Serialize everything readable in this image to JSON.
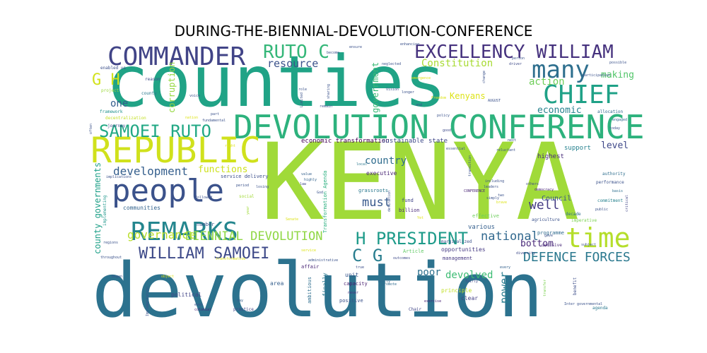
{
  "chart_data": {
    "type": "wordcloud",
    "title": "DURING-THE-BIENNIAL-DEVOLUTION-CONFERENCE",
    "colormap": "viridis",
    "background": "#ffffff",
    "words": [
      {
        "text": "KENYA",
        "weight": 100,
        "color": "#a0da39"
      },
      {
        "text": "counties",
        "weight": 80,
        "color": "#20a386"
      },
      {
        "text": "devolution",
        "weight": 76,
        "color": "#2c728e"
      },
      {
        "text": "DEVOLUTION CONFERENCE",
        "weight": 38,
        "color": "#2db27d"
      },
      {
        "text": "REPUBLIC",
        "weight": 40,
        "color": "#d0e11c"
      },
      {
        "text": "people",
        "weight": 36,
        "color": "#3b528b"
      },
      {
        "text": "COMMANDER",
        "weight": 32,
        "color": "#414487"
      },
      {
        "text": "REMARKS",
        "weight": 30,
        "color": "#24868e"
      },
      {
        "text": "CHIEF",
        "weight": 30,
        "color": "#1fa187"
      },
      {
        "text": "many",
        "weight": 28,
        "color": "#2e6f8e"
      },
      {
        "text": "time",
        "weight": 28,
        "color": "#b5de2b"
      },
      {
        "text": "EXCELLENCY WILLIAM",
        "weight": 24,
        "color": "#46327e"
      },
      {
        "text": "RUTO C",
        "weight": 24,
        "color": "#35b779"
      },
      {
        "text": "SAMOEI RUTO",
        "weight": 24,
        "color": "#22a884"
      },
      {
        "text": "WILLIAM SAMOEI",
        "weight": 22,
        "color": "#3e4a89"
      },
      {
        "text": "H PRESIDENT",
        "weight": 22,
        "color": "#1e9b8a"
      },
      {
        "text": "C G",
        "weight": 22,
        "color": "#287d8e"
      },
      {
        "text": "BIENNIAL DEVOLUTION",
        "weight": 18,
        "color": "#8fd744"
      },
      {
        "text": "DEFENCE FORCES",
        "weight": 18,
        "color": "#2a788e"
      },
      {
        "text": "G H",
        "weight": 20,
        "color": "#d2e21b"
      },
      {
        "text": "development",
        "weight": 15,
        "color": "#355f8d"
      },
      {
        "text": "governance",
        "weight": 16,
        "color": "#b8de29"
      },
      {
        "text": "national",
        "weight": 16,
        "color": "#31688e"
      },
      {
        "text": "well",
        "weight": 16,
        "color": "#443a83"
      },
      {
        "text": "must",
        "weight": 15,
        "color": "#38598c"
      },
      {
        "text": "country",
        "weight": 13,
        "color": "#2f6c8e"
      },
      {
        "text": "resource",
        "weight": 14,
        "color": "#3b528b"
      },
      {
        "text": "Constitution",
        "weight": 14,
        "color": "#a8db34"
      },
      {
        "text": "economic",
        "weight": 13,
        "color": "#26828e"
      },
      {
        "text": "action",
        "weight": 13,
        "color": "#6ece58"
      },
      {
        "text": "making",
        "weight": 12,
        "color": "#52c569"
      },
      {
        "text": "level",
        "weight": 12,
        "color": "#3f4889"
      },
      {
        "text": "functions",
        "weight": 13,
        "color": "#cde11d"
      },
      {
        "text": "one",
        "weight": 14,
        "color": "#355e8d"
      },
      {
        "text": "poor",
        "weight": 13,
        "color": "#2d708e"
      },
      {
        "text": "bottom",
        "weight": 13,
        "color": "#482878"
      },
      {
        "text": "devolved",
        "weight": 13,
        "color": "#3dbc74"
      },
      {
        "text": "power",
        "weight": 14,
        "color": "#287c8e"
      },
      {
        "text": "corruption",
        "weight": 12,
        "color": "#95d840"
      },
      {
        "text": "county governments",
        "weight": 12,
        "color": "#1fa088"
      },
      {
        "text": "government",
        "weight": 12,
        "color": "#3aba76"
      },
      {
        "text": "Kenyans",
        "weight": 12,
        "color": "#dde318"
      },
      {
        "text": "Council",
        "weight": 10,
        "color": "#3b528b"
      },
      {
        "text": "support",
        "weight": 9,
        "color": "#26818e"
      },
      {
        "text": "highest",
        "weight": 9,
        "color": "#472c7a"
      },
      {
        "text": "economic transformation",
        "weight": 9,
        "color": "#440154"
      },
      {
        "text": "sustainable",
        "weight": 9,
        "color": "#3e4989"
      },
      {
        "text": "state",
        "weight": 9,
        "color": "#3f4788"
      },
      {
        "text": "various",
        "weight": 9,
        "color": "#355f8d"
      },
      {
        "text": "executive",
        "weight": 8,
        "color": "#482475"
      },
      {
        "text": "communities",
        "weight": 8,
        "color": "#33638d"
      },
      {
        "text": "political",
        "weight": 8,
        "color": "#414487"
      },
      {
        "text": "area",
        "weight": 8,
        "color": "#355f8d"
      },
      {
        "text": "unit",
        "weight": 8,
        "color": "#39558c"
      },
      {
        "text": "capacity",
        "weight": 7,
        "color": "#481f70"
      },
      {
        "text": "opportunities",
        "weight": 8,
        "color": "#443983"
      },
      {
        "text": "management",
        "weight": 7,
        "color": "#453781"
      },
      {
        "text": "affair",
        "weight": 7,
        "color": "#482475"
      },
      {
        "text": "principle",
        "weight": 8,
        "color": "#c0df25"
      },
      {
        "text": "clear",
        "weight": 8,
        "color": "#423f85"
      },
      {
        "text": "positive",
        "weight": 7,
        "color": "#3b528b"
      },
      {
        "text": "finally",
        "weight": 8,
        "color": "#2a788e"
      },
      {
        "text": "ambitious",
        "weight": 7,
        "color": "#2e6e8e"
      },
      {
        "text": "effective",
        "weight": 7,
        "color": "#6ccd5a"
      },
      {
        "text": "fund",
        "weight": 7,
        "color": "#404588"
      },
      {
        "text": "programme",
        "weight": 7,
        "color": "#2f6b8e"
      },
      {
        "text": "billion",
        "weight": 7,
        "color": "#482878"
      },
      {
        "text": "Article",
        "weight": 7,
        "color": "#5ec962"
      },
      {
        "text": "Transformation Agenda",
        "weight": 7,
        "color": "#29af7f"
      },
      {
        "text": "grassroots",
        "weight": 7,
        "color": "#2a788e"
      },
      {
        "text": "number",
        "weight": 7,
        "color": "#39568c"
      },
      {
        "text": "service delivery",
        "weight": 7,
        "color": "#3c4f8a"
      },
      {
        "text": "implementing",
        "weight": 6,
        "color": "#1f968b"
      },
      {
        "text": "framework",
        "weight": 6,
        "color": "#20928c"
      },
      {
        "text": "decentralization",
        "weight": 6,
        "color": "#c2df23"
      },
      {
        "text": "reason",
        "weight": 6,
        "color": "#3e4c8a"
      },
      {
        "text": "enabled us",
        "weight": 6,
        "color": "#3c508b"
      },
      {
        "text": "project",
        "weight": 6,
        "color": "#9bd93c"
      },
      {
        "text": "journey",
        "weight": 6,
        "color": "#3e4a89"
      },
      {
        "text": "decade",
        "weight": 6,
        "color": "#2e6e8e"
      },
      {
        "text": "decisive",
        "weight": 6,
        "color": "#482878"
      },
      {
        "text": "agriculture",
        "weight": 6,
        "color": "#3b528b"
      },
      {
        "text": "imperative",
        "weight": 6,
        "color": "#7ad151"
      },
      {
        "text": "commitment",
        "weight": 6,
        "color": "#26828e"
      },
      {
        "text": "performance",
        "weight": 6,
        "color": "#3b528b"
      },
      {
        "text": "authority",
        "weight": 6,
        "color": "#2e6e8e"
      },
      {
        "text": "allocation",
        "weight": 6,
        "color": "#31678e"
      },
      {
        "text": "agenda",
        "weight": 6,
        "color": "#2a788e"
      },
      {
        "text": "benefit",
        "weight": 6,
        "color": "#3d4e8a"
      },
      {
        "text": "transfer",
        "weight": 5,
        "color": "#7ad151"
      },
      {
        "text": "diversity",
        "weight": 5,
        "color": "#3e4989"
      },
      {
        "text": "marginalized",
        "weight": 6,
        "color": "#3b528b"
      },
      {
        "text": "every",
        "weight": 5,
        "color": "#34618d"
      },
      {
        "text": "Inter governmental",
        "weight": 5,
        "color": "#3b528b"
      },
      {
        "text": "outcomes",
        "weight": 5,
        "color": "#3e4a89"
      },
      {
        "text": "really",
        "weight": 5,
        "color": "#30698e"
      },
      {
        "text": "exercise",
        "weight": 5,
        "color": "#482475"
      },
      {
        "text": "Chair",
        "weight": 6,
        "color": "#404688"
      },
      {
        "text": "practice",
        "weight": 6,
        "color": "#414487"
      },
      {
        "text": "never",
        "weight": 5,
        "color": "#46337f"
      },
      {
        "text": "colonial",
        "weight": 5,
        "color": "#482677"
      },
      {
        "text": "even",
        "weight": 5,
        "color": "#3b528b"
      },
      {
        "text": "may",
        "weight": 5,
        "color": "#35608d"
      },
      {
        "text": "true",
        "weight": 5,
        "color": "#3d4e8a"
      },
      {
        "text": "fairly",
        "weight": 5,
        "color": "#3f4889"
      },
      {
        "text": "promote",
        "weight": 5,
        "color": "#2f6b8e"
      },
      {
        "text": "Senate",
        "weight": 5,
        "color": "#dde318"
      },
      {
        "text": "law",
        "weight": 5,
        "color": "#3e4a89"
      },
      {
        "text": "social",
        "weight": 6,
        "color": "#a2da37"
      },
      {
        "text": "period",
        "weight": 5,
        "color": "#3b528b"
      },
      {
        "text": "highly",
        "weight": 5,
        "color": "#33628d"
      },
      {
        "text": "value",
        "weight": 5,
        "color": "#34608d"
      },
      {
        "text": "local",
        "weight": 5,
        "color": "#2a788e"
      },
      {
        "text": "public",
        "weight": 5,
        "color": "#3b528b"
      },
      {
        "text": "basis",
        "weight": 5,
        "color": "#2e6e8e"
      },
      {
        "text": "critical",
        "weight": 5,
        "color": "#404688"
      },
      {
        "text": "today",
        "weight": 5,
        "color": "#3b528b"
      },
      {
        "text": "engaged",
        "weight": 5,
        "color": "#31688e"
      },
      {
        "text": "possible",
        "weight": 5,
        "color": "#3b528b"
      },
      {
        "text": "participation",
        "weight": 5,
        "color": "#3b528b"
      },
      {
        "text": "driver",
        "weight": 5,
        "color": "#3e4a89"
      },
      {
        "text": "AUGUST",
        "weight": 5,
        "color": "#3b528b"
      },
      {
        "text": "Freedom",
        "weight": 5,
        "color": "#dde318"
      },
      {
        "text": "policy",
        "weight": 5,
        "color": "#3b528b"
      },
      {
        "text": "good",
        "weight": 5,
        "color": "#3e4a89"
      },
      {
        "text": "next",
        "weight": 5,
        "color": "#3b528b"
      },
      {
        "text": "reluctant",
        "weight": 5,
        "color": "#3b528b"
      },
      {
        "text": "others",
        "weight": 5,
        "color": "#3e4a89"
      },
      {
        "text": "including",
        "weight": 5,
        "color": "#3b528b"
      },
      {
        "text": "CONFERENCE",
        "weight": 5,
        "color": "#482475"
      },
      {
        "text": "leaders",
        "weight": 5,
        "color": "#3b528b"
      },
      {
        "text": "simply",
        "weight": 5,
        "color": "#3b528b"
      },
      {
        "text": "two",
        "weight": 5,
        "color": "#3b528b"
      },
      {
        "text": "brave",
        "weight": 5,
        "color": "#dde318"
      },
      {
        "text": "God",
        "weight": 5,
        "color": "#3b528b"
      },
      {
        "text": "Yet",
        "weight": 5,
        "color": "#dde318"
      },
      {
        "text": "democracy",
        "weight": 5,
        "color": "#482475"
      },
      {
        "text": "gave",
        "weight": 5,
        "color": "#3b528b"
      },
      {
        "text": "year",
        "weight": 5,
        "color": "#a0da39"
      },
      {
        "text": "nation",
        "weight": 5,
        "color": "#dde318"
      },
      {
        "text": "part",
        "weight": 5,
        "color": "#3b528b"
      },
      {
        "text": "fundamental",
        "weight": 5,
        "color": "#3b528b"
      },
      {
        "text": "voice",
        "weight": 5,
        "color": "#3b528b"
      },
      {
        "text": "county",
        "weight": 6,
        "color": "#2a788e"
      },
      {
        "text": "role",
        "weight": 5,
        "color": "#3b528b"
      },
      {
        "text": "remain",
        "weight": 5,
        "color": "#3b528b"
      },
      {
        "text": "ensure",
        "weight": 5,
        "color": "#3b528b"
      },
      {
        "text": "become",
        "weight": 5,
        "color": "#3b528b"
      },
      {
        "text": "enhancing",
        "weight": 5,
        "color": "#3b528b"
      },
      {
        "text": "neglected",
        "weight": 5,
        "color": "#3b528b"
      },
      {
        "text": "longer",
        "weight": 5,
        "color": "#3b528b"
      },
      {
        "text": "Vision",
        "weight": 5,
        "color": "#3b528b"
      },
      {
        "text": "and",
        "weight": 5,
        "color": "#3b528b"
      },
      {
        "text": "change",
        "weight": 5,
        "color": "#3b528b"
      },
      {
        "text": "person",
        "weight": 5,
        "color": "#3b528b"
      },
      {
        "text": "regions",
        "weight": 5,
        "color": "#3b528b"
      },
      {
        "text": "throughout",
        "weight": 5,
        "color": "#3b528b"
      },
      {
        "text": "began",
        "weight": 5,
        "color": "#3b528b"
      },
      {
        "text": "object",
        "weight": 5,
        "color": "#dde318"
      },
      {
        "text": "Implementation",
        "weight": 5,
        "color": "#3b528b"
      },
      {
        "text": "implications",
        "weight": 5,
        "color": "#3b528b"
      },
      {
        "text": "followed",
        "weight": 5,
        "color": "#3b528b"
      },
      {
        "text": "service",
        "weight": 5,
        "color": "#dde318"
      },
      {
        "text": "administrative",
        "weight": 5,
        "color": "#3b528b"
      },
      {
        "text": "losing",
        "weight": 5,
        "color": "#3b528b"
      },
      {
        "text": "transformative",
        "weight": 5,
        "color": "#dde318"
      },
      {
        "text": "definition",
        "weight": 5,
        "color": "#3b528b"
      },
      {
        "text": "essential",
        "weight": 5,
        "color": "#3b528b"
      },
      {
        "text": "transition",
        "weight": 5,
        "color": "#3b528b"
      },
      {
        "text": "emergence",
        "weight": 5,
        "color": "#dde318"
      },
      {
        "text": "sharing",
        "weight": 5,
        "color": "#3b528b"
      },
      {
        "text": "Limited",
        "weight": 5,
        "color": "#3b528b"
      },
      {
        "text": "right",
        "weight": 5,
        "color": "#dde318"
      },
      {
        "text": "subject",
        "weight": 5,
        "color": "#3b528b"
      },
      {
        "text": "often",
        "weight": 5,
        "color": "#3b528b"
      }
    ]
  }
}
